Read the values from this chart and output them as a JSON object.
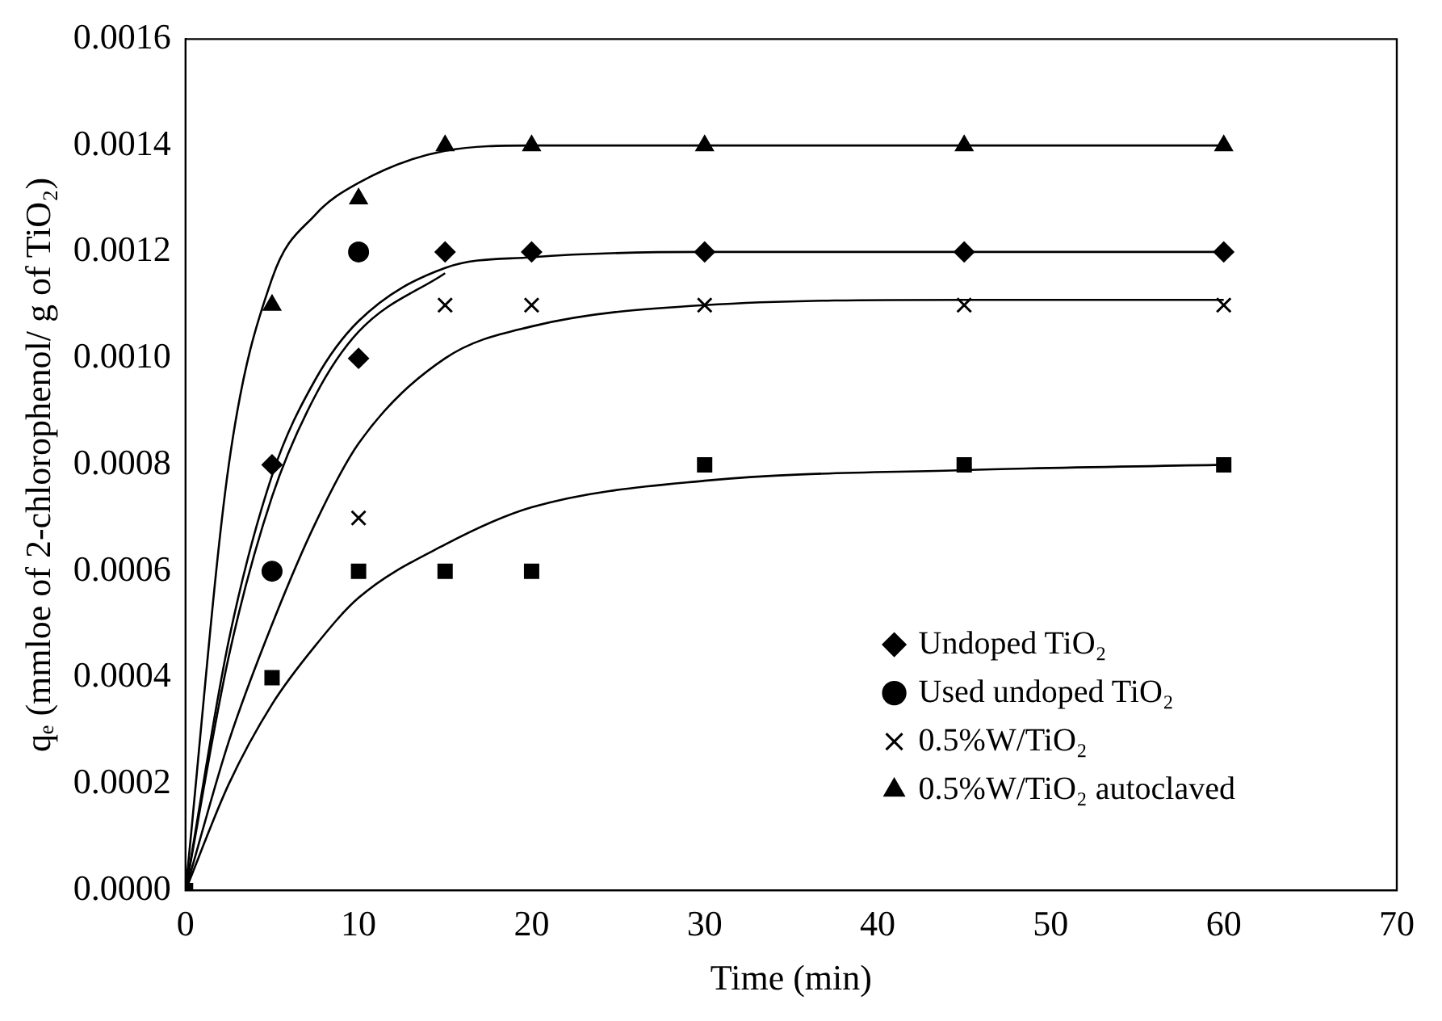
{
  "chart_data": {
    "type": "scatter",
    "xlabel": "Time (min)",
    "ylabel": "qₑ (mmloe of 2-chlorophenol/ g of TiO₂)",
    "xlim": [
      0,
      70
    ],
    "xticks": [
      0,
      10,
      20,
      30,
      40,
      50,
      60,
      70
    ],
    "ylim": [
      0,
      0.0016
    ],
    "yticks": [
      {
        "value": 0,
        "label": "0.0000"
      },
      {
        "value": 0.0002,
        "label": "0.0002"
      },
      {
        "value": 0.0004,
        "label": "0.0004"
      },
      {
        "value": 0.0006,
        "label": "0.0006"
      },
      {
        "value": 0.0008,
        "label": "0.0008"
      },
      {
        "value": 0.001,
        "label": "0.0010"
      },
      {
        "value": 0.0012,
        "label": "0.0012"
      },
      {
        "value": 0.0014,
        "label": "0.0014"
      },
      {
        "value": 0.0016,
        "label": "0.0016"
      }
    ],
    "grid": false,
    "legend": "right",
    "x": [
      0,
      5,
      10,
      15,
      20,
      30,
      45,
      60
    ],
    "series": [
      {
        "name": "Undoped TiO₂",
        "color": "#000000",
        "marker": "diamond",
        "values": [
          null,
          0.0008,
          0.001,
          0.0012,
          0.0012,
          0.0012,
          0.0012,
          0.0012
        ]
      },
      {
        "name": "Used undoped TiO₂",
        "color": "#000000",
        "marker": "circle",
        "values": [
          null,
          0.0006,
          0.0012,
          null,
          null,
          null,
          null,
          null
        ]
      },
      {
        "name": "0.5%W/TiO₂",
        "color": "#000000",
        "marker": "cross",
        "values": [
          null,
          null,
          0.0007,
          0.0011,
          0.0011,
          0.0011,
          0.0011,
          0.0011
        ]
      },
      {
        "name": "0.5%W/TiO₂ autoclaved",
        "color": "#000000",
        "marker": "triangle",
        "values": [
          null,
          0.0011,
          0.0013,
          0.0014,
          0.0014,
          0.0014,
          0.0014,
          0.0014
        ]
      },
      {
        "color": "#000000",
        "marker": "square",
        "values": [
          0,
          0.0004,
          0.0006,
          0.0006,
          0.0006,
          0.0008,
          0.0008,
          0.0008
        ]
      },
      {
        "type": "line",
        "color": "#000000",
        "x": [
          0,
          2.5,
          5,
          7.5,
          10,
          15,
          20,
          30,
          45,
          60
        ],
        "values": [
          0,
          0.0008,
          0.00115,
          0.00127,
          0.00133,
          0.00139,
          0.0014,
          0.0014,
          0.0014,
          0.0014
        ]
      },
      {
        "type": "line",
        "color": "#000000",
        "x": [
          0,
          2.5,
          5,
          7.5,
          10,
          15,
          20,
          30,
          45,
          60
        ],
        "values": [
          0,
          0.00047,
          0.00078,
          0.00096,
          0.00107,
          0.00117,
          0.00119,
          0.0012,
          0.0012,
          0.0012
        ]
      },
      {
        "type": "line",
        "color": "#000000",
        "x": [
          0,
          2.5,
          5,
          7.5,
          10,
          15
        ],
        "values": [
          0,
          0.00044,
          0.00074,
          0.00093,
          0.00105,
          0.00116
        ]
      },
      {
        "type": "line",
        "color": "#000000",
        "x": [
          0,
          2.5,
          5,
          7.5,
          10,
          15,
          20,
          30,
          45,
          60
        ],
        "values": [
          0,
          0.00028,
          0.0005,
          0.00069,
          0.00084,
          0.001,
          0.00106,
          0.0011,
          0.00111,
          0.00111
        ]
      },
      {
        "type": "line",
        "color": "#000000",
        "x": [
          0,
          2.5,
          5,
          7.5,
          10,
          15,
          20,
          30,
          45,
          60
        ],
        "values": [
          0,
          0.0002,
          0.00035,
          0.00046,
          0.00055,
          0.00065,
          0.00072,
          0.00077,
          0.00079,
          0.0008
        ]
      }
    ]
  }
}
